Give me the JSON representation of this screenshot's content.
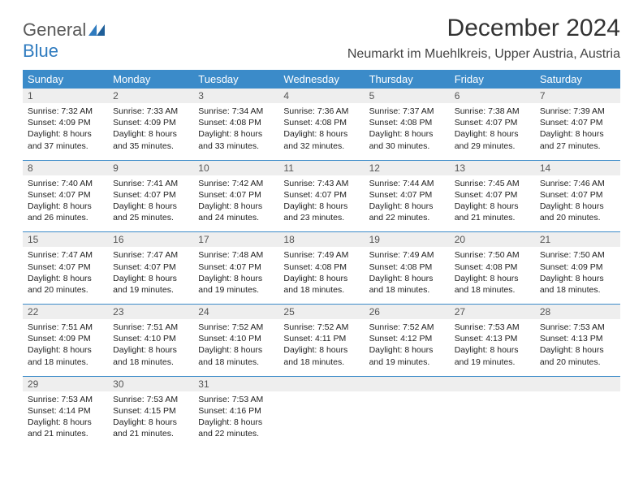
{
  "logo": {
    "part1": "General",
    "part2": "Blue"
  },
  "title": "December 2024",
  "location": "Neumarkt im Muehlkreis, Upper Austria, Austria",
  "colors": {
    "header_bg": "#3b8bc9",
    "header_text": "#ffffff",
    "daynum_bg": "#eeeeee",
    "rule": "#3b8bc9",
    "body_text": "#222222",
    "page_bg": "#ffffff",
    "logo_gray": "#5a5a5a",
    "logo_blue": "#2f7bbf"
  },
  "typography": {
    "title_fontsize": 30,
    "location_fontsize": 16,
    "dow_fontsize": 13,
    "daynum_fontsize": 12,
    "cell_fontsize": 10.5
  },
  "dow": [
    "Sunday",
    "Monday",
    "Tuesday",
    "Wednesday",
    "Thursday",
    "Friday",
    "Saturday"
  ],
  "weeks": [
    {
      "nums": [
        "1",
        "2",
        "3",
        "4",
        "5",
        "6",
        "7"
      ],
      "cells": [
        {
          "sunrise": "Sunrise: 7:32 AM",
          "sunset": "Sunset: 4:09 PM",
          "day1": "Daylight: 8 hours",
          "day2": "and 37 minutes."
        },
        {
          "sunrise": "Sunrise: 7:33 AM",
          "sunset": "Sunset: 4:09 PM",
          "day1": "Daylight: 8 hours",
          "day2": "and 35 minutes."
        },
        {
          "sunrise": "Sunrise: 7:34 AM",
          "sunset": "Sunset: 4:08 PM",
          "day1": "Daylight: 8 hours",
          "day2": "and 33 minutes."
        },
        {
          "sunrise": "Sunrise: 7:36 AM",
          "sunset": "Sunset: 4:08 PM",
          "day1": "Daylight: 8 hours",
          "day2": "and 32 minutes."
        },
        {
          "sunrise": "Sunrise: 7:37 AM",
          "sunset": "Sunset: 4:08 PM",
          "day1": "Daylight: 8 hours",
          "day2": "and 30 minutes."
        },
        {
          "sunrise": "Sunrise: 7:38 AM",
          "sunset": "Sunset: 4:07 PM",
          "day1": "Daylight: 8 hours",
          "day2": "and 29 minutes."
        },
        {
          "sunrise": "Sunrise: 7:39 AM",
          "sunset": "Sunset: 4:07 PM",
          "day1": "Daylight: 8 hours",
          "day2": "and 27 minutes."
        }
      ]
    },
    {
      "nums": [
        "8",
        "9",
        "10",
        "11",
        "12",
        "13",
        "14"
      ],
      "cells": [
        {
          "sunrise": "Sunrise: 7:40 AM",
          "sunset": "Sunset: 4:07 PM",
          "day1": "Daylight: 8 hours",
          "day2": "and 26 minutes."
        },
        {
          "sunrise": "Sunrise: 7:41 AM",
          "sunset": "Sunset: 4:07 PM",
          "day1": "Daylight: 8 hours",
          "day2": "and 25 minutes."
        },
        {
          "sunrise": "Sunrise: 7:42 AM",
          "sunset": "Sunset: 4:07 PM",
          "day1": "Daylight: 8 hours",
          "day2": "and 24 minutes."
        },
        {
          "sunrise": "Sunrise: 7:43 AM",
          "sunset": "Sunset: 4:07 PM",
          "day1": "Daylight: 8 hours",
          "day2": "and 23 minutes."
        },
        {
          "sunrise": "Sunrise: 7:44 AM",
          "sunset": "Sunset: 4:07 PM",
          "day1": "Daylight: 8 hours",
          "day2": "and 22 minutes."
        },
        {
          "sunrise": "Sunrise: 7:45 AM",
          "sunset": "Sunset: 4:07 PM",
          "day1": "Daylight: 8 hours",
          "day2": "and 21 minutes."
        },
        {
          "sunrise": "Sunrise: 7:46 AM",
          "sunset": "Sunset: 4:07 PM",
          "day1": "Daylight: 8 hours",
          "day2": "and 20 minutes."
        }
      ]
    },
    {
      "nums": [
        "15",
        "16",
        "17",
        "18",
        "19",
        "20",
        "21"
      ],
      "cells": [
        {
          "sunrise": "Sunrise: 7:47 AM",
          "sunset": "Sunset: 4:07 PM",
          "day1": "Daylight: 8 hours",
          "day2": "and 20 minutes."
        },
        {
          "sunrise": "Sunrise: 7:47 AM",
          "sunset": "Sunset: 4:07 PM",
          "day1": "Daylight: 8 hours",
          "day2": "and 19 minutes."
        },
        {
          "sunrise": "Sunrise: 7:48 AM",
          "sunset": "Sunset: 4:07 PM",
          "day1": "Daylight: 8 hours",
          "day2": "and 19 minutes."
        },
        {
          "sunrise": "Sunrise: 7:49 AM",
          "sunset": "Sunset: 4:08 PM",
          "day1": "Daylight: 8 hours",
          "day2": "and 18 minutes."
        },
        {
          "sunrise": "Sunrise: 7:49 AM",
          "sunset": "Sunset: 4:08 PM",
          "day1": "Daylight: 8 hours",
          "day2": "and 18 minutes."
        },
        {
          "sunrise": "Sunrise: 7:50 AM",
          "sunset": "Sunset: 4:08 PM",
          "day1": "Daylight: 8 hours",
          "day2": "and 18 minutes."
        },
        {
          "sunrise": "Sunrise: 7:50 AM",
          "sunset": "Sunset: 4:09 PM",
          "day1": "Daylight: 8 hours",
          "day2": "and 18 minutes."
        }
      ]
    },
    {
      "nums": [
        "22",
        "23",
        "24",
        "25",
        "26",
        "27",
        "28"
      ],
      "cells": [
        {
          "sunrise": "Sunrise: 7:51 AM",
          "sunset": "Sunset: 4:09 PM",
          "day1": "Daylight: 8 hours",
          "day2": "and 18 minutes."
        },
        {
          "sunrise": "Sunrise: 7:51 AM",
          "sunset": "Sunset: 4:10 PM",
          "day1": "Daylight: 8 hours",
          "day2": "and 18 minutes."
        },
        {
          "sunrise": "Sunrise: 7:52 AM",
          "sunset": "Sunset: 4:10 PM",
          "day1": "Daylight: 8 hours",
          "day2": "and 18 minutes."
        },
        {
          "sunrise": "Sunrise: 7:52 AM",
          "sunset": "Sunset: 4:11 PM",
          "day1": "Daylight: 8 hours",
          "day2": "and 18 minutes."
        },
        {
          "sunrise": "Sunrise: 7:52 AM",
          "sunset": "Sunset: 4:12 PM",
          "day1": "Daylight: 8 hours",
          "day2": "and 19 minutes."
        },
        {
          "sunrise": "Sunrise: 7:53 AM",
          "sunset": "Sunset: 4:13 PM",
          "day1": "Daylight: 8 hours",
          "day2": "and 19 minutes."
        },
        {
          "sunrise": "Sunrise: 7:53 AM",
          "sunset": "Sunset: 4:13 PM",
          "day1": "Daylight: 8 hours",
          "day2": "and 20 minutes."
        }
      ]
    },
    {
      "nums": [
        "29",
        "30",
        "31",
        "",
        "",
        "",
        ""
      ],
      "cells": [
        {
          "sunrise": "Sunrise: 7:53 AM",
          "sunset": "Sunset: 4:14 PM",
          "day1": "Daylight: 8 hours",
          "day2": "and 21 minutes."
        },
        {
          "sunrise": "Sunrise: 7:53 AM",
          "sunset": "Sunset: 4:15 PM",
          "day1": "Daylight: 8 hours",
          "day2": "and 21 minutes."
        },
        {
          "sunrise": "Sunrise: 7:53 AM",
          "sunset": "Sunset: 4:16 PM",
          "day1": "Daylight: 8 hours",
          "day2": "and 22 minutes."
        },
        null,
        null,
        null,
        null
      ]
    }
  ]
}
